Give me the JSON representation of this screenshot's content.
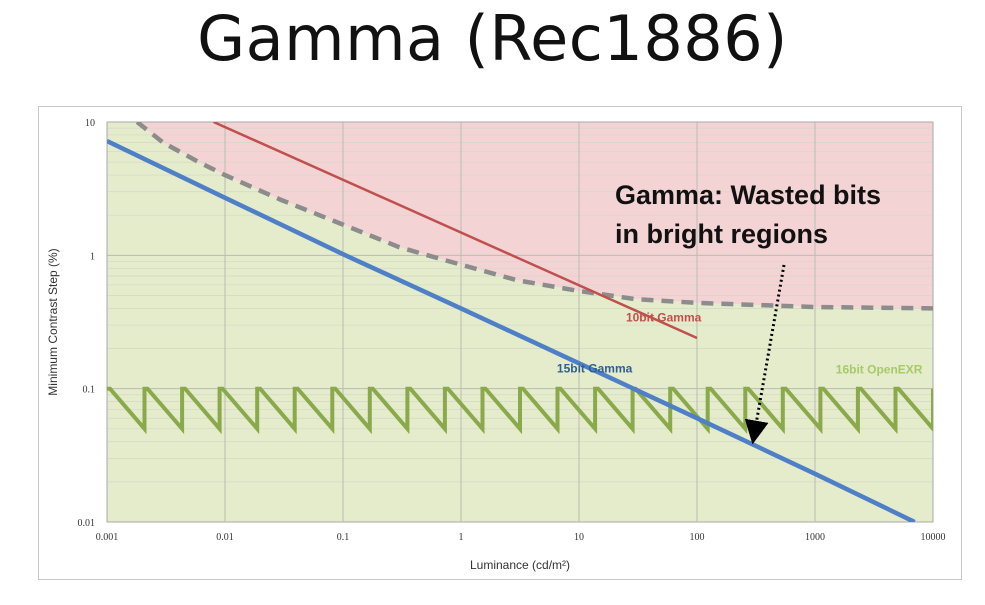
{
  "slide": {
    "title": "Gamma (Rec1886)"
  },
  "chart_data": {
    "type": "line",
    "xlabel": "Luminance (cd/m²)",
    "ylabel": "Minimum Contrast Step (%)",
    "xscale": "log",
    "yscale": "log",
    "xlim": [
      0.001,
      10000
    ],
    "ylim": [
      0.01,
      10
    ],
    "x_ticks": [
      "0.001",
      "0.01",
      "0.1",
      "1",
      "10",
      "100",
      "1000",
      "10000"
    ],
    "y_ticks": [
      "10",
      "1",
      "0.1",
      "0.01"
    ],
    "grid": true,
    "regions": [
      {
        "description": "shaded above threshold",
        "color": "#f4d3d5"
      },
      {
        "description": "shaded below threshold",
        "color": "#e4eccb"
      }
    ],
    "series": [
      {
        "name": "10bit Gamma",
        "color": "#c0504d",
        "style": "solid",
        "x": [
          0.008,
          100
        ],
        "y": [
          10,
          0.24
        ]
      },
      {
        "name": "15bit Gamma",
        "color": "#4f7fc6",
        "style": "solid",
        "x": [
          0.001,
          0.01,
          0.1,
          1,
          10,
          100,
          1000,
          7000
        ],
        "y": [
          7.2,
          2.7,
          1.02,
          0.4,
          0.155,
          0.06,
          0.023,
          0.01
        ]
      },
      {
        "name": "",
        "color": "#8c8c8c",
        "style": "dashed",
        "x": [
          0.0018,
          0.003,
          0.006,
          0.01,
          0.03,
          0.1,
          0.3,
          1,
          3,
          10,
          30,
          100,
          1000,
          10000
        ],
        "y": [
          10,
          7.0,
          5.0,
          4.0,
          2.6,
          1.7,
          1.15,
          0.85,
          0.65,
          0.54,
          0.47,
          0.44,
          0.41,
          0.4
        ]
      },
      {
        "name": "16bit OpenEXR",
        "color": "#8aa94a",
        "style": "sawtooth",
        "x_range": [
          0.001,
          10000
        ],
        "y_range": [
          0.05,
          0.1
        ],
        "periods": 22
      }
    ],
    "annotations": [
      {
        "text_line1": "Gamma: Wasted bits",
        "text_line2": "in bright regions",
        "arrow_to": {
          "x": 300,
          "y": 0.04
        }
      }
    ]
  }
}
